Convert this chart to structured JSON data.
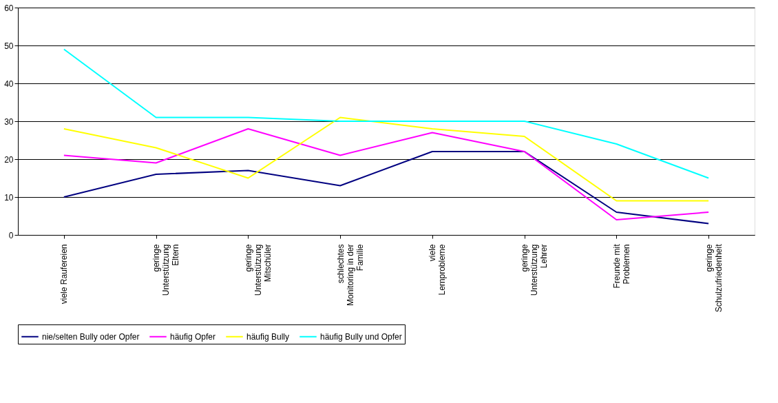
{
  "chart_data": {
    "type": "line",
    "categories": [
      "viele Raufereien",
      "geringe\nUnterstützung\nEltern",
      "geringe\nUnterstützung\nMitschüler",
      "schlechtes\nMonitoring in der\nFamilie",
      "viele\nLernprobleme",
      "geringe\nUnterstützung\nLehrer",
      "Freunde mit\nProblemen",
      "geringe\nSchulzufriedenheit"
    ],
    "series": [
      {
        "name": "nie/selten Bully oder Opfer",
        "color": "#000080",
        "values": [
          10,
          16,
          17,
          13,
          22,
          22,
          6,
          3
        ]
      },
      {
        "name": "häufig Opfer",
        "color": "#ff00ff",
        "values": [
          21,
          19,
          28,
          21,
          27,
          22,
          4,
          6
        ]
      },
      {
        "name": "häufig Bully",
        "color": "#ffff00",
        "values": [
          28,
          23,
          15,
          31,
          28,
          26,
          9,
          9
        ]
      },
      {
        "name": "häufig Bully und Opfer",
        "color": "#00ffff",
        "values": [
          49,
          31,
          31,
          30,
          30,
          30,
          24,
          15
        ]
      }
    ],
    "ylim": [
      0,
      60
    ],
    "yticks": [
      0,
      10,
      20,
      30,
      40,
      50,
      60
    ],
    "grid": "y",
    "legend": "bottom",
    "marker": "none",
    "line_style": "solid"
  }
}
